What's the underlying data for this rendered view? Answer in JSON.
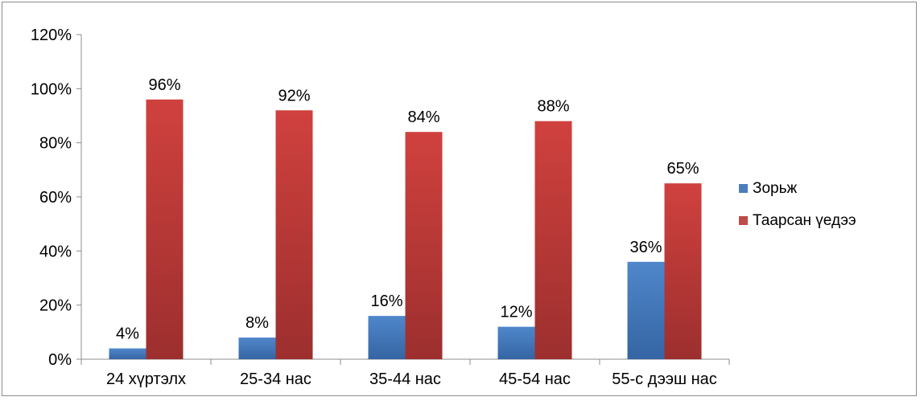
{
  "chart_data": {
    "type": "bar",
    "title": "",
    "xlabel": "",
    "ylabel": "",
    "categories": [
      "24 хүртэлх",
      "25-34 нас",
      "35-44 нас",
      "45-54 нас",
      "55-с дээш нас"
    ],
    "series": [
      {
        "name": "Зорьж",
        "values": [
          4,
          8,
          16,
          12,
          36
        ],
        "labels": [
          "4%",
          "8%",
          "16%",
          "12%",
          "36%"
        ],
        "color": "#4a7ebb"
      },
      {
        "name": "Таарсан үедээ",
        "values": [
          96,
          92,
          84,
          88,
          65
        ],
        "labels": [
          "96%",
          "92%",
          "84%",
          "88%",
          "65%"
        ],
        "color": "#be4b48"
      }
    ],
    "ylim": [
      0,
      120
    ],
    "yticks": [
      0,
      20,
      40,
      60,
      80,
      100,
      120
    ],
    "ytick_labels": [
      "0%",
      "20%",
      "40%",
      "60%",
      "80%",
      "100%",
      "120%"
    ],
    "grid": false,
    "legend_position": "right"
  }
}
